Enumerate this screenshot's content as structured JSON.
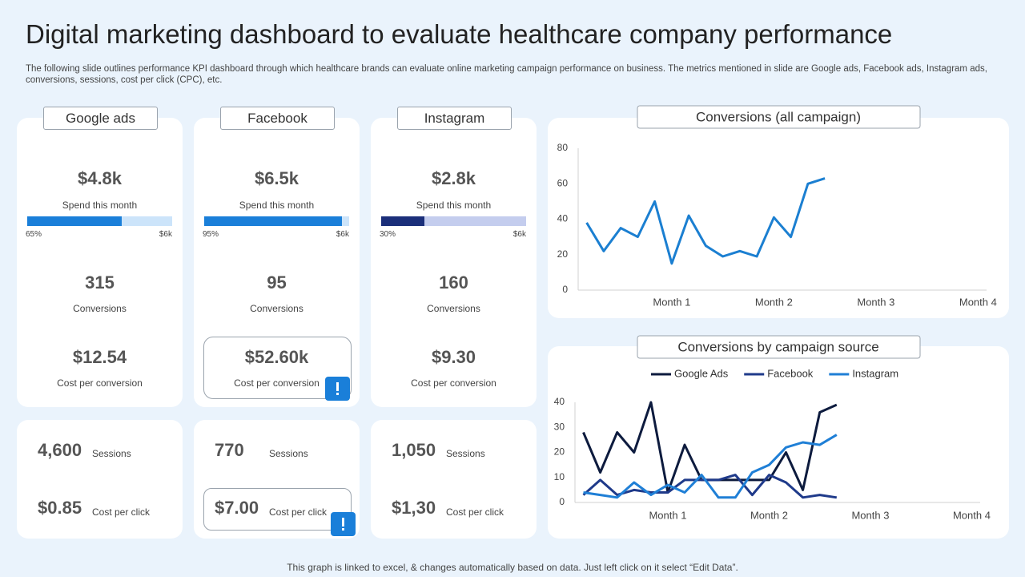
{
  "header": {
    "title": "Digital marketing dashboard to evaluate healthcare company performance",
    "subtitle": "The following slide outlines performance KPI dashboard through which healthcare brands can evaluate online marketing campaign performance on business. The metrics mentioned in slide are Google ads, Facebook ads, Instagram ads, conversions, sessions, cost per click (CPC), etc."
  },
  "cards": [
    {
      "name": "Google ads",
      "spend": "$4.8k",
      "spend_label": "Spend this month",
      "bar": {
        "value": 65,
        "label": "65%",
        "max_label": "$6k",
        "color": "#1a7fd9",
        "track_color": "#cce4fa"
      },
      "conversions": "315",
      "conversions_label": "Conversions",
      "cost_per_conversion": "$12.54",
      "cost_per_conversion_label": "Cost per conversion",
      "sessions": "4,600",
      "sessions_label": "Sessions",
      "cost_per_click": "$0.85",
      "cost_per_click_label": "Cost per click"
    },
    {
      "name": "Facebook",
      "spend": "$6.5k",
      "spend_label": "Spend this month",
      "bar": {
        "value": 95,
        "label": "95%",
        "max_label": "$6k",
        "color": "#1a7fd9",
        "track_color": "#cce4fa"
      },
      "conversions": "95",
      "conversions_label": "Conversions",
      "cost_per_conversion": "$52.60k",
      "cost_per_conversion_label": "Cost per conversion",
      "sessions": "770",
      "sessions_label": "Sessions",
      "cost_per_click": "$7.00",
      "cost_per_click_label": "Cost per click"
    },
    {
      "name": "Instagram",
      "spend": "$2.8k",
      "spend_label": "Spend this month",
      "bar": {
        "value": 30,
        "label": "30%",
        "max_label": "$6k",
        "color": "#1b2f7a",
        "track_color": "#c4cdee"
      },
      "conversions": "160",
      "conversions_label": "Conversions",
      "cost_per_conversion": "$9.30",
      "cost_per_conversion_label": "Cost per conversion",
      "sessions": "1,050",
      "sessions_label": "Sessions",
      "cost_per_click": "$1,30",
      "cost_per_click_label": "Cost per click"
    }
  ],
  "chart_data": [
    {
      "type": "line",
      "title": "Conversions (all campaign)",
      "categories": [
        null,
        null,
        null,
        null,
        null,
        "Month 1",
        null,
        null,
        null,
        null,
        null,
        "Month 2",
        null,
        null,
        null,
        null,
        null,
        "Month 3",
        null,
        null,
        null,
        null,
        null,
        "Month 4"
      ],
      "series": [
        {
          "name": null,
          "color": "#1b7fd1",
          "values": [
            38,
            22,
            35,
            30,
            50,
            15,
            42,
            25,
            19,
            22,
            19,
            41,
            30,
            60,
            63,
            null,
            null,
            null,
            null,
            null,
            null,
            null,
            null,
            null
          ]
        }
      ],
      "ylim": [
        0,
        80
      ],
      "yticks": [
        0,
        20,
        40,
        60,
        80
      ],
      "grid": false,
      "legend": false
    },
    {
      "type": "line",
      "title": "Conversions by campaign source",
      "categories": [
        null,
        null,
        null,
        null,
        null,
        "Month 1",
        null,
        null,
        null,
        null,
        null,
        "Month 2",
        null,
        null,
        null,
        null,
        null,
        "Month 3",
        null,
        null,
        null,
        null,
        null,
        "Month 4"
      ],
      "series": [
        {
          "name": "Google Ads",
          "color": "#0d1b3e",
          "values": [
            28,
            12,
            28,
            20,
            40,
            4,
            23,
            9,
            9,
            9,
            9,
            9,
            20,
            5,
            36,
            39,
            null,
            null,
            null,
            null,
            null,
            null,
            null,
            null
          ]
        },
        {
          "name": "Facebook",
          "color": "#1f3a8a",
          "values": [
            3,
            9,
            3,
            5,
            4,
            4,
            9,
            9,
            9,
            11,
            3,
            11,
            8,
            2,
            3,
            2,
            null,
            null,
            null,
            null,
            null,
            null,
            null,
            null
          ]
        },
        {
          "name": "Instagram",
          "color": "#1f7fd6",
          "values": [
            4,
            3,
            2,
            8,
            3,
            7,
            4,
            11,
            2,
            2,
            12,
            15,
            22,
            24,
            23,
            27,
            null,
            null,
            null,
            null,
            null,
            null,
            null,
            null
          ]
        }
      ],
      "ylim": [
        0,
        40
      ],
      "yticks": [
        0,
        10,
        20,
        30,
        40
      ],
      "grid": false,
      "legend": "top"
    }
  ],
  "footer": "This graph is linked to excel, & changes automatically based on data. Just left click on it select “Edit Data”."
}
